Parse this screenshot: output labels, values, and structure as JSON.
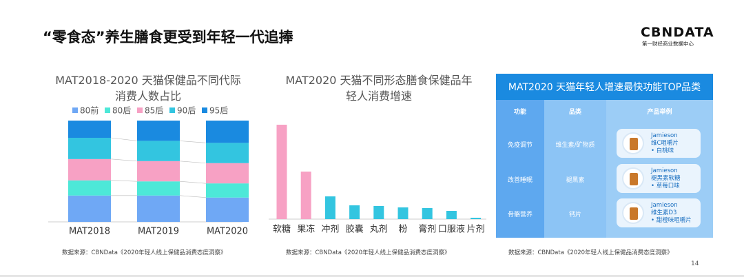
{
  "header": {
    "title": "“零食态”养生膳食更受到年轻一代追捧",
    "logo": "CBNDATA",
    "logo_subtitle": "第一财经商业数据中心"
  },
  "chart_data": [
    {
      "type": "stacked-bar",
      "title": "MAT2018-2020 天猫保健品不同代际消费人数占比",
      "categories": [
        "MAT2018",
        "MAT2019",
        "MAT2020"
      ],
      "ylim": [
        0,
        100
      ],
      "series": [
        {
          "name": "80前",
          "color": "#6fa8f5",
          "values": [
            26,
            26,
            24
          ]
        },
        {
          "name": "80后",
          "color": "#4de8d8",
          "values": [
            15,
            14,
            14
          ]
        },
        {
          "name": "85后",
          "color": "#f7a1c4",
          "values": [
            21,
            20,
            20
          ]
        },
        {
          "name": "90后",
          "color": "#33c5e0",
          "values": [
            21,
            20,
            20
          ]
        },
        {
          "name": "95后",
          "color": "#1a8ae0",
          "values": [
            17,
            20,
            22
          ]
        }
      ]
    },
    {
      "type": "bar",
      "title": "MAT2020 天猫不同形态膳食保健品年轻人消费增速",
      "categories": [
        "软糖",
        "果冻",
        "冲剂",
        "胶囊",
        "丸剂",
        "粉",
        "膏剂",
        "口服液",
        "片剂"
      ],
      "values": [
        137,
        69,
        33,
        20,
        19,
        17,
        16,
        12,
        2
      ],
      "ylim": [
        0,
        140
      ],
      "colors": [
        "#f7a1c4",
        "#f7a1c4",
        "#33c5e0",
        "#33c5e0",
        "#33c5e0",
        "#33c5e0",
        "#33c5e0",
        "#33c5e0",
        "#33c5e0"
      ]
    }
  ],
  "table": {
    "title": "MAT2020 天猫年轻人增速最快功能TOP品类",
    "columns": [
      "功能",
      "品类",
      "产品举例"
    ],
    "rows": [
      {
        "function": "免疫调节",
        "category": "维生素/矿物质",
        "brand": "Jamieson",
        "product": "维C咀嚼片",
        "flavor": "• 白桃味"
      },
      {
        "function": "改善睡眠",
        "category": "褪黑素",
        "brand": "Jamieson",
        "product": "褪黑素软糖",
        "flavor": "• 草莓口味"
      },
      {
        "function": "骨骼营养",
        "category": "钙片",
        "brand": "Jamieson",
        "product": "维生素D3",
        "flavor": "• 甜橙味咀嚼片"
      }
    ]
  },
  "sources": [
    "数据来源：CBNData《2020年轻人线上保健品消费态度洞察》",
    "数据来源：CBNData《2020年轻人线上保健品消费态度洞察》",
    "数据来源：CBNData《2020年轻人线上保健品消费态度洞察》"
  ],
  "footer": {
    "page": "14"
  }
}
